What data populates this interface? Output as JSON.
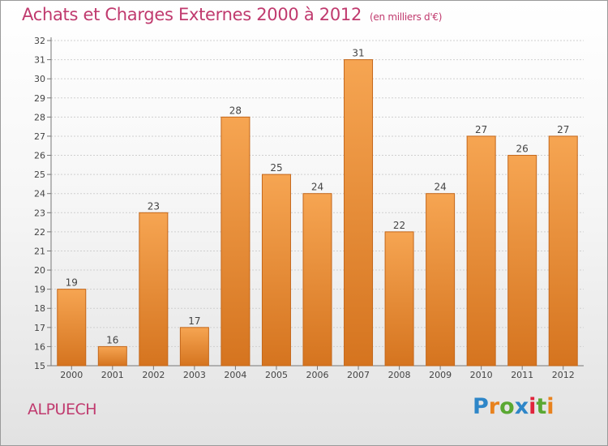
{
  "header": {
    "title": "Achats et Charges Externes 2000 à 2012",
    "subtitle": "(en milliers d'€)"
  },
  "footer": {
    "place": "ALPUECH",
    "logo_text": "Proxiti",
    "logo_colors": [
      "#2e86c8",
      "#e8821e",
      "#5aa832",
      "#2e86c8",
      "#e0243c",
      "#5aa832",
      "#e8821e"
    ]
  },
  "colors": {
    "title": "#c03a6e",
    "bar_top": "#f6a552",
    "bar_bottom": "#d5741f",
    "bar_border": "#c4671a",
    "grid": "#cfcfcf"
  },
  "chart_data": {
    "type": "bar",
    "categories": [
      "2000",
      "2001",
      "2002",
      "2003",
      "2004",
      "2005",
      "2006",
      "2007",
      "2008",
      "2009",
      "2010",
      "2011",
      "2012"
    ],
    "values": [
      19,
      16,
      23,
      17,
      28,
      25,
      24,
      31,
      22,
      24,
      27,
      26,
      27
    ],
    "title": "Achats et Charges Externes 2000 à 2012",
    "subtitle": "(en milliers d'€)",
    "xlabel": "",
    "ylabel": "",
    "ylim": [
      15,
      32
    ],
    "yticks": [
      15,
      16,
      17,
      18,
      19,
      20,
      21,
      22,
      23,
      24,
      25,
      26,
      27,
      28,
      29,
      30,
      31,
      32
    ],
    "grid": true,
    "data_labels": true
  }
}
